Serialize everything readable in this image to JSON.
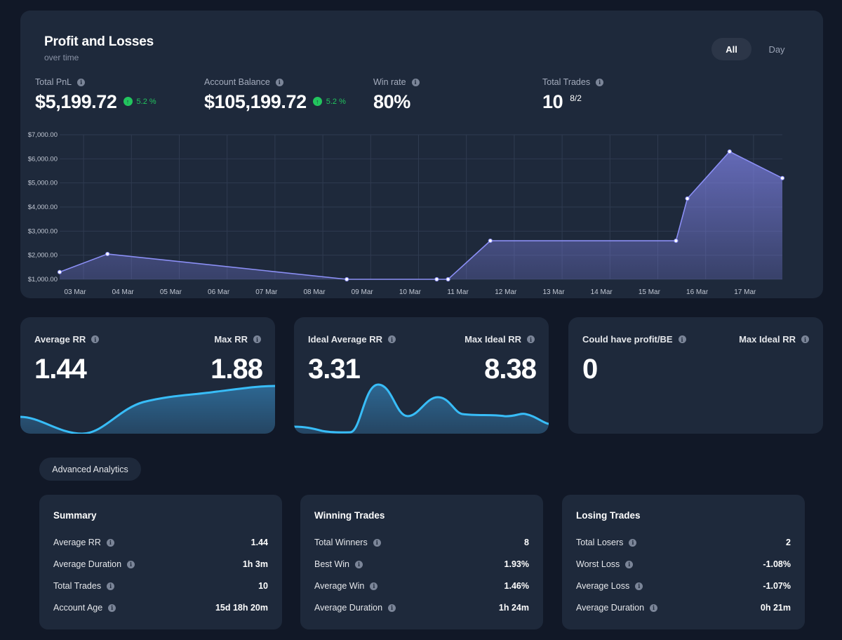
{
  "pnl": {
    "title": "Profit and Losses",
    "subtitle": "over time",
    "toggle": {
      "all_label": "All",
      "day_label": "Day",
      "selected": "All"
    },
    "stats": {
      "total_pnl": {
        "label": "Total PnL",
        "value": "$5,199.72",
        "delta": "5.2 %"
      },
      "account_balance": {
        "label": "Account Balance",
        "value": "$105,199.72",
        "delta": "5.2 %"
      },
      "win_rate": {
        "label": "Win rate",
        "value": "80%"
      },
      "total_trades": {
        "label": "Total Trades",
        "value": "10",
        "sub": "8/2"
      }
    },
    "colors": {
      "line": "#8b8ff5",
      "positive": "#22c55e"
    }
  },
  "chart_data": {
    "type": "area",
    "x_tick_labels": [
      "03 Mar",
      "04 Mar",
      "05 Mar",
      "06 Mar",
      "07 Mar",
      "08 Mar",
      "09 Mar",
      "10 Mar",
      "11 Mar",
      "12 Mar",
      "13 Mar",
      "14 Mar",
      "15 Mar",
      "16 Mar",
      "17 Mar"
    ],
    "y_tick_labels": [
      "$1,000.00",
      "$2,000.00",
      "$3,000.00",
      "$4,000.00",
      "$5,000.00",
      "$6,000.00",
      "$7,000.00"
    ],
    "ylim": [
      1000,
      7000
    ],
    "grid": true,
    "series": [
      {
        "x": [
          "03 Mar",
          "04 Mar",
          "09 Mar",
          "11 Mar",
          "11 Mar",
          "12 Mar",
          "16 Mar",
          "16 Mar",
          "17 Mar",
          "18 Mar"
        ],
        "values": [
          1300,
          2050,
          1000,
          1000,
          1000,
          2600,
          2600,
          4350,
          6300,
          5199.72
        ]
      }
    ]
  },
  "rr_cards": [
    {
      "left_label": "Average RR",
      "left_value": "1.44",
      "right_label": "Max RR",
      "right_value": "1.88"
    },
    {
      "left_label": "Ideal Average RR",
      "left_value": "3.31",
      "right_label": "Max Ideal RR",
      "right_value": "8.38"
    },
    {
      "left_label": "Could have profit/BE",
      "left_value": "0",
      "right_label": "Max Ideal RR",
      "right_value": ""
    }
  ],
  "advanced_label": "Advanced Analytics",
  "summary": {
    "title": "Summary",
    "rows": [
      {
        "label": "Average RR",
        "value": "1.44"
      },
      {
        "label": "Average Duration",
        "value": "1h 3m"
      },
      {
        "label": "Total Trades",
        "value": "10"
      },
      {
        "label": "Account Age",
        "value": "15d 18h 20m"
      }
    ]
  },
  "winning": {
    "title": "Winning Trades",
    "rows": [
      {
        "label": "Total Winners",
        "value": "8"
      },
      {
        "label": "Best Win",
        "value": "1.93%"
      },
      {
        "label": "Average Win",
        "value": "1.46%"
      },
      {
        "label": "Average Duration",
        "value": "1h 24m"
      }
    ]
  },
  "losing": {
    "title": "Losing Trades",
    "rows": [
      {
        "label": "Total Losers",
        "value": "2"
      },
      {
        "label": "Worst Loss",
        "value": "-1.08%"
      },
      {
        "label": "Average Loss",
        "value": "-1.07%"
      },
      {
        "label": "Average Duration",
        "value": "0h 21m"
      }
    ]
  }
}
